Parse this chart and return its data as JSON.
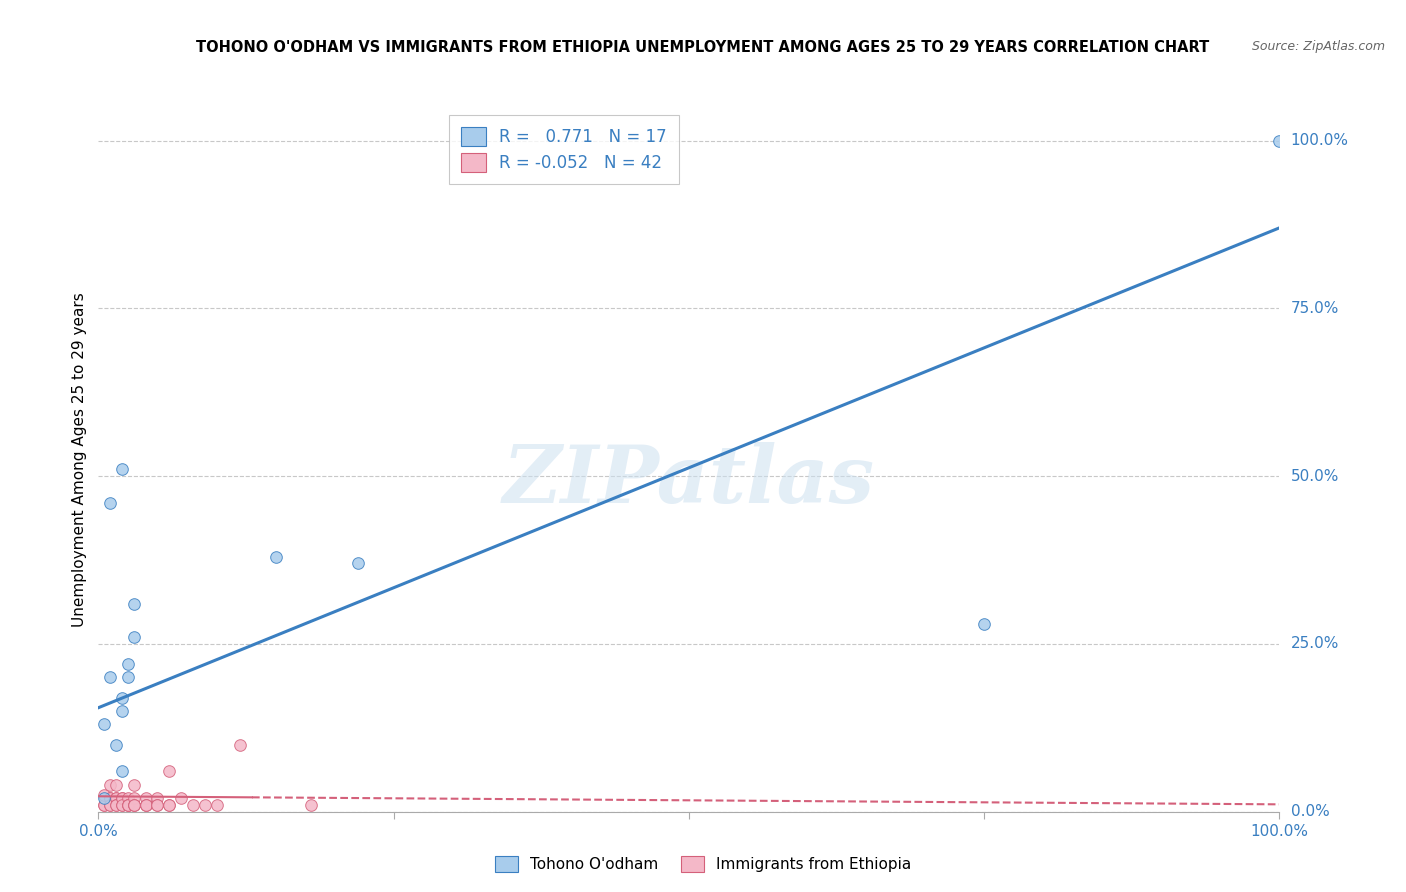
{
  "title": "TOHONO O'ODHAM VS IMMIGRANTS FROM ETHIOPIA UNEMPLOYMENT AMONG AGES 25 TO 29 YEARS CORRELATION CHART",
  "source": "Source: ZipAtlas.com",
  "ylabel": "Unemployment Among Ages 25 to 29 years",
  "xlim": [
    0.0,
    1.0
  ],
  "ylim": [
    0.0,
    1.05
  ],
  "x_ticks": [
    0.0,
    0.25,
    0.5,
    0.75,
    1.0
  ],
  "x_tick_labels": [
    "0.0%",
    "",
    "",
    "",
    "100.0%"
  ],
  "y_tick_labels_right": [
    "0.0%",
    "25.0%",
    "50.0%",
    "75.0%",
    "100.0%"
  ],
  "y_ticks_right": [
    0.0,
    0.25,
    0.5,
    0.75,
    1.0
  ],
  "blue_R": 0.771,
  "blue_N": 17,
  "pink_R": -0.052,
  "pink_N": 42,
  "blue_color": "#a8ccec",
  "pink_color": "#f4b8c8",
  "blue_line_color": "#3a7fc1",
  "pink_line_color": "#d4607a",
  "grid_color": "#c8c8c8",
  "watermark": "ZIPatlas",
  "blue_scatter_x": [
    0.005,
    0.005,
    0.01,
    0.015,
    0.02,
    0.02,
    0.02,
    0.025,
    0.025,
    0.03,
    0.03,
    0.15,
    0.22,
    0.75,
    1.0,
    0.01,
    0.02
  ],
  "blue_scatter_y": [
    0.02,
    0.13,
    0.2,
    0.1,
    0.17,
    0.06,
    0.15,
    0.22,
    0.2,
    0.26,
    0.31,
    0.38,
    0.37,
    0.28,
    1.0,
    0.46,
    0.51
  ],
  "pink_scatter_x": [
    0.005,
    0.005,
    0.005,
    0.01,
    0.01,
    0.01,
    0.01,
    0.01,
    0.015,
    0.015,
    0.015,
    0.015,
    0.015,
    0.02,
    0.02,
    0.02,
    0.02,
    0.025,
    0.025,
    0.025,
    0.025,
    0.03,
    0.03,
    0.03,
    0.03,
    0.03,
    0.04,
    0.04,
    0.04,
    0.04,
    0.05,
    0.05,
    0.05,
    0.06,
    0.06,
    0.06,
    0.07,
    0.08,
    0.09,
    0.1,
    0.12,
    0.18
  ],
  "pink_scatter_y": [
    0.01,
    0.01,
    0.025,
    0.02,
    0.02,
    0.01,
    0.04,
    0.01,
    0.02,
    0.02,
    0.01,
    0.01,
    0.04,
    0.01,
    0.02,
    0.02,
    0.01,
    0.02,
    0.01,
    0.01,
    0.01,
    0.04,
    0.01,
    0.02,
    0.01,
    0.01,
    0.01,
    0.02,
    0.01,
    0.01,
    0.02,
    0.01,
    0.01,
    0.01,
    0.06,
    0.01,
    0.02,
    0.01,
    0.01,
    0.01,
    0.1,
    0.01
  ],
  "blue_trend_y_intercept": 0.155,
  "blue_trend_slope": 0.715,
  "pink_trend_y_intercept": 0.023,
  "pink_trend_slope": -0.012,
  "marker_size": 70
}
